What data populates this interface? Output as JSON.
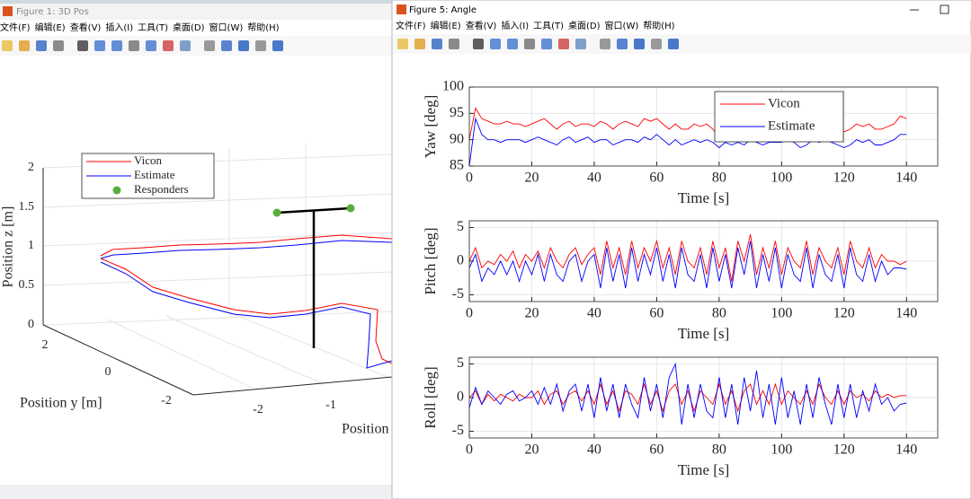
{
  "windows": [
    {
      "title": "Figure 1: 3D Pos",
      "menu": [
        "文件(F)",
        "编辑(E)",
        "查看(V)",
        "插入(I)",
        "工具(T)",
        "桌面(D)",
        "窗口(W)",
        "帮助(H)"
      ]
    },
    {
      "title": "Figure 5: Angle",
      "menu": [
        "文件(F)",
        "编辑(E)",
        "查看(V)",
        "插入(I)",
        "工具(T)",
        "桌面(D)",
        "窗口(W)",
        "帮助(H)"
      ]
    }
  ],
  "figure1": {
    "zlabel": "Position z [m]",
    "ylabel": "Position y [m]",
    "xlabel": "Position",
    "zticks": [
      "0",
      "0.5",
      "1",
      "1.5",
      "2"
    ],
    "yticks": [
      "2",
      "0",
      "-2"
    ],
    "xticks": [
      "-2",
      "-1"
    ],
    "legend": [
      "Vicon",
      "Estimate",
      "Responders"
    ]
  },
  "chart_data": [
    {
      "type": "line",
      "ylabel": "Yaw [deg]",
      "xlabel": "Time [s]",
      "xlim": [
        0,
        150
      ],
      "xticks": [
        0,
        20,
        40,
        60,
        80,
        100,
        120,
        140
      ],
      "ylim": [
        85,
        100
      ],
      "yticks": [
        85,
        90,
        95,
        100
      ],
      "grid": true,
      "legend": "top-right",
      "x": [
        0,
        2,
        4,
        6,
        8,
        10,
        12,
        14,
        16,
        18,
        20,
        22,
        24,
        26,
        28,
        30,
        32,
        34,
        36,
        38,
        40,
        42,
        44,
        46,
        48,
        50,
        52,
        54,
        56,
        58,
        60,
        62,
        64,
        66,
        68,
        70,
        72,
        74,
        76,
        78,
        80,
        82,
        84,
        86,
        88,
        90,
        92,
        94,
        96,
        98,
        100,
        102,
        104,
        106,
        108,
        110,
        112,
        114,
        116,
        118,
        120,
        122,
        124,
        126,
        128,
        130,
        132,
        134,
        136,
        138,
        140
      ],
      "series": [
        {
          "name": "Vicon",
          "color": "#ff0000",
          "values": [
            90,
            96,
            94,
            93.5,
            93,
            93,
            93.5,
            93,
            93,
            92.5,
            93,
            93.5,
            94,
            93,
            92,
            93,
            93.5,
            92.5,
            93,
            93,
            92.5,
            93.5,
            93,
            92,
            93,
            93.5,
            93,
            92.5,
            94,
            93.5,
            94,
            93,
            92,
            93,
            92,
            92,
            93,
            92.5,
            93,
            92,
            90.5,
            92,
            91.5,
            92,
            92,
            93,
            92,
            91.5,
            92,
            92,
            92.5,
            93,
            92,
            91.5,
            92,
            93,
            92,
            93,
            92.5,
            92,
            91.5,
            92,
            93,
            92.5,
            93,
            92,
            92,
            92.5,
            93,
            94.5,
            94
          ]
        },
        {
          "name": "Estimate",
          "color": "#0000ff",
          "values": [
            85,
            94,
            91,
            90,
            90,
            89.5,
            90,
            90,
            90,
            89.5,
            90,
            90.5,
            90,
            89.5,
            89,
            90,
            90.5,
            89.5,
            90,
            90.5,
            89.5,
            90,
            90,
            89,
            89.5,
            90,
            90,
            89.5,
            90.5,
            90,
            91,
            90,
            89,
            90,
            89,
            89.5,
            90,
            89.5,
            90,
            89.5,
            88.5,
            89.5,
            89,
            89.5,
            89,
            90,
            89.5,
            89,
            89.5,
            89.5,
            89.5,
            90,
            89.5,
            88.5,
            89,
            90,
            89.5,
            90,
            89.5,
            89,
            88.5,
            89,
            90,
            89.5,
            90,
            89,
            89,
            89.5,
            90,
            91,
            91
          ]
        }
      ]
    },
    {
      "type": "line",
      "ylabel": "Pitch [deg]",
      "xlabel": "Time [s]",
      "xlim": [
        0,
        150
      ],
      "xticks": [
        0,
        20,
        40,
        60,
        80,
        100,
        120,
        140
      ],
      "ylim": [
        -6,
        6
      ],
      "yticks": [
        -5,
        0,
        5
      ],
      "grid": true,
      "x": [
        0,
        2,
        4,
        6,
        8,
        10,
        12,
        14,
        16,
        18,
        20,
        22,
        24,
        26,
        28,
        30,
        32,
        34,
        36,
        38,
        40,
        42,
        44,
        46,
        48,
        50,
        52,
        54,
        56,
        58,
        60,
        62,
        64,
        66,
        68,
        70,
        72,
        74,
        76,
        78,
        80,
        82,
        84,
        86,
        88,
        90,
        92,
        94,
        96,
        98,
        100,
        102,
        104,
        106,
        108,
        110,
        112,
        114,
        116,
        118,
        120,
        122,
        124,
        126,
        128,
        130,
        132,
        134,
        136,
        138,
        140
      ],
      "series": [
        {
          "name": "Vicon",
          "color": "#ff0000",
          "values": [
            0,
            2,
            -1,
            0,
            -0.5,
            1,
            0,
            1.5,
            -1,
            1,
            0,
            1.5,
            -1,
            2,
            0,
            -1,
            1,
            2,
            -0.5,
            1,
            2,
            -2,
            3,
            -1,
            2,
            -2,
            3,
            -1,
            2,
            0,
            3,
            -1,
            2,
            -2,
            3,
            0,
            -1,
            2,
            -2,
            3,
            -1,
            2,
            -3,
            3,
            0,
            4,
            -2,
            2,
            -1,
            3,
            -2,
            2,
            0,
            -1,
            3,
            -2,
            2,
            0,
            -1,
            2,
            -2,
            3,
            0,
            -1,
            2,
            -1,
            1,
            0,
            0,
            -0.5,
            0
          ]
        },
        {
          "name": "Estimate",
          "color": "#0000ff",
          "values": [
            -1,
            1,
            -3,
            -1,
            -2,
            0,
            -2,
            0,
            -3,
            0,
            -2,
            1,
            -3,
            1,
            -2,
            -3,
            0,
            1,
            -3,
            0,
            1,
            -4,
            2,
            -3,
            1,
            -4,
            2,
            -3,
            1,
            -2,
            2,
            -3,
            1,
            -4,
            2,
            -2,
            -3,
            1,
            -4,
            2,
            -3,
            1,
            -4,
            2,
            -2,
            3,
            -4,
            1,
            -3,
            2,
            -4,
            1,
            -2,
            -3,
            2,
            -4,
            1,
            -2,
            -3,
            1,
            -4,
            2,
            -2,
            -3,
            1,
            -3,
            0,
            -2,
            -1,
            -1,
            -1.2
          ]
        }
      ]
    },
    {
      "type": "line",
      "ylabel": "Roll [deg]",
      "xlabel": "Time [s]",
      "xlim": [
        0,
        150
      ],
      "xticks": [
        0,
        20,
        40,
        60,
        80,
        100,
        120,
        140
      ],
      "ylim": [
        -6,
        6
      ],
      "yticks": [
        -5,
        0,
        5
      ],
      "grid": true,
      "x": [
        0,
        2,
        4,
        6,
        8,
        10,
        12,
        14,
        16,
        18,
        20,
        22,
        24,
        26,
        28,
        30,
        32,
        34,
        36,
        38,
        40,
        42,
        44,
        46,
        48,
        50,
        52,
        54,
        56,
        58,
        60,
        62,
        64,
        66,
        68,
        70,
        72,
        74,
        76,
        78,
        80,
        82,
        84,
        86,
        88,
        90,
        92,
        94,
        96,
        98,
        100,
        102,
        104,
        106,
        108,
        110,
        112,
        114,
        116,
        118,
        120,
        122,
        124,
        126,
        128,
        130,
        132,
        134,
        136,
        138,
        140
      ],
      "series": [
        {
          "name": "Vicon",
          "color": "#ff0000",
          "values": [
            0,
            1,
            -1,
            0.5,
            -0.5,
            0.5,
            0,
            -0.5,
            0.5,
            0,
            0,
            1,
            -1,
            0.5,
            1,
            -1,
            0.5,
            1,
            -0.5,
            1,
            -1,
            2,
            -1,
            1,
            -2,
            1,
            0.5,
            -1,
            2,
            -1,
            1,
            -2,
            1,
            2,
            -1,
            1,
            -2,
            1,
            0,
            -1,
            2,
            -1,
            1,
            -2,
            1,
            2,
            -1,
            1,
            -1,
            2,
            -1,
            1,
            0,
            -1,
            1,
            -1,
            2,
            0,
            -1,
            1,
            -1,
            1,
            0,
            0.5,
            -0.5,
            1,
            0,
            0.5,
            0,
            0.3,
            0.3
          ]
        },
        {
          "name": "Estimate",
          "color": "#0000ff",
          "values": [
            -1.5,
            1.5,
            -1,
            1,
            0,
            -1,
            0.5,
            1,
            -0.5,
            0,
            1,
            -1,
            1.5,
            -1,
            2,
            -2,
            1,
            2,
            -2,
            2,
            -3,
            3,
            -2,
            2,
            -3,
            2,
            -1,
            -3,
            3,
            -2,
            2,
            -3,
            3,
            5,
            -4,
            2,
            -3,
            2,
            -2,
            -3,
            3,
            -3,
            2,
            -4,
            3,
            -2,
            4,
            -3,
            2,
            -4,
            3,
            -3,
            1,
            -4,
            2,
            -3,
            3,
            -1,
            -4,
            2,
            -3,
            2,
            -3,
            1,
            -2,
            2,
            -1,
            0,
            -2,
            -1,
            -0.8
          ]
        }
      ]
    }
  ]
}
